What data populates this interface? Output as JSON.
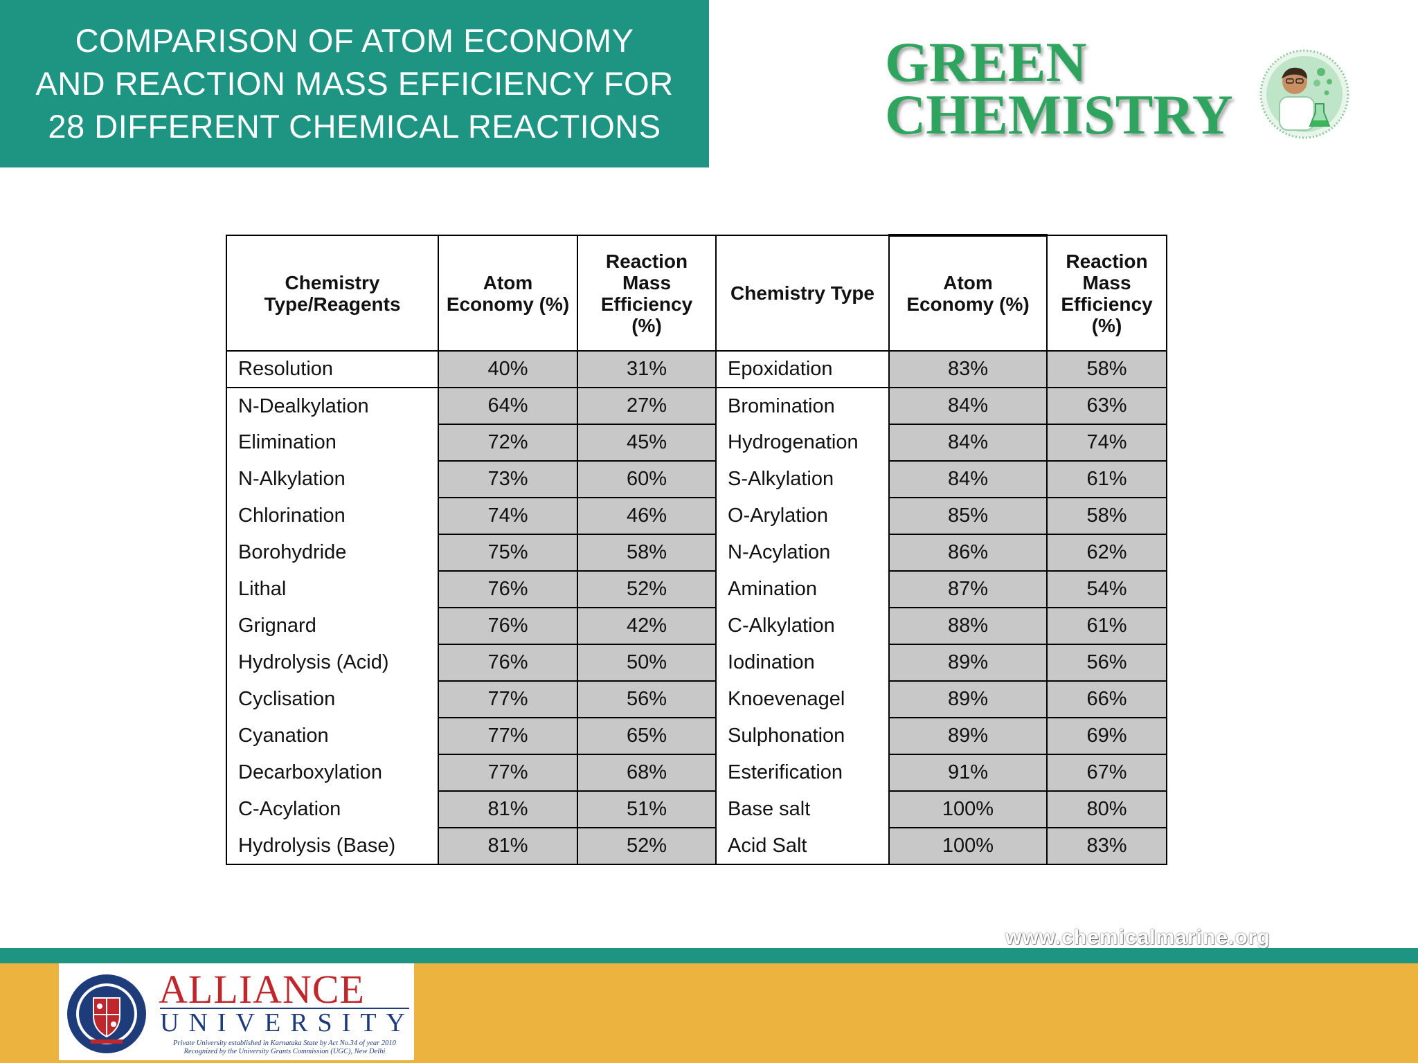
{
  "title": "COMPARISON OF ATOM ECONOMY\nAND  REACTION MASS EFFICIENCY FOR\n28  DIFFERENT CHEMICAL REACTIONS",
  "brand": {
    "line1": "GREEN",
    "line2": "CHEMISTRY",
    "color": "#2fa45e"
  },
  "table": {
    "headers": [
      "Chemistry\nType/Reagents",
      "Atom\nEconomy (%)",
      "Reaction\nMass\nEfficiency\n(%)",
      "Chemistry Type",
      "Atom\nEconomy (%)",
      "Reaction\nMass\nEfficiency\n(%)"
    ],
    "rows": [
      [
        "Resolution",
        "40%",
        "31%",
        "Epoxidation",
        "83%",
        "58%"
      ],
      [
        "N-Dealkylation",
        "64%",
        "27%",
        "Bromination",
        "84%",
        "63%"
      ],
      [
        "Elimination",
        "72%",
        "45%",
        "Hydrogenation",
        "84%",
        "74%"
      ],
      [
        "N-Alkylation",
        "73%",
        "60%",
        "S-Alkylation",
        "84%",
        "61%"
      ],
      [
        "Chlorination",
        "74%",
        "46%",
        "O-Arylation",
        "85%",
        "58%"
      ],
      [
        "Borohydride",
        "75%",
        "58%",
        "N-Acylation",
        "86%",
        "62%"
      ],
      [
        "Lithal",
        "76%",
        "52%",
        "Amination",
        "87%",
        "54%"
      ],
      [
        "Grignard",
        "76%",
        "42%",
        "C-Alkylation",
        "88%",
        "61%"
      ],
      [
        "Hydrolysis (Acid)",
        "76%",
        "50%",
        "Iodination",
        "89%",
        "56%"
      ],
      [
        "Cyclisation",
        "77%",
        "56%",
        "Knoevenagel",
        "89%",
        "66%"
      ],
      [
        "Cyanation",
        "77%",
        "65%",
        "Sulphonation",
        "89%",
        "69%"
      ],
      [
        "Decarboxylation",
        "77%",
        "68%",
        "Esterification",
        "91%",
        "67%"
      ],
      [
        "C-Acylation",
        "81%",
        "51%",
        "Base salt",
        "100%",
        "80%"
      ],
      [
        "Hydrolysis (Base)",
        "81%",
        "52%",
        "Acid Salt",
        "100%",
        "83%"
      ]
    ]
  },
  "website": "www.chemicalmarine.org",
  "footer": {
    "logo_name": "ALLIANCE",
    "logo_sub": "UNIVERSITY",
    "logo_line1": "Private University established in Karnataka State by Act No.34 of year 2010",
    "logo_line2": "Recognized by the University Grants Commission (UGC), New Delhi",
    "emblem_text": "ALLIANCE UNIVERSITY"
  },
  "colors": {
    "teal": "#1e9483",
    "gold": "#ecb43e",
    "cell_gray": "#c8c8c8",
    "logo_red": "#c0272d",
    "logo_blue": "#1f3c7a"
  }
}
